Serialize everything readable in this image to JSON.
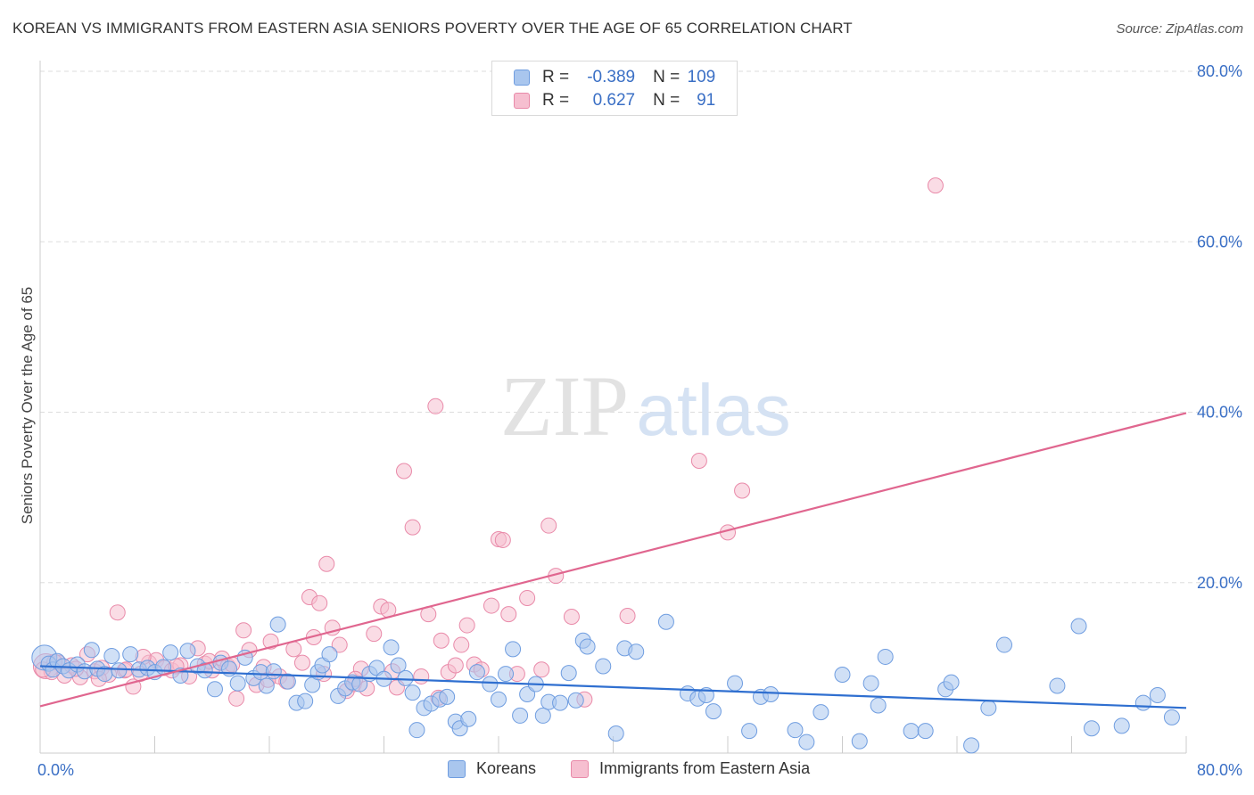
{
  "title": "KOREAN VS IMMIGRANTS FROM EASTERN ASIA SENIORS POVERTY OVER THE AGE OF 65 CORRELATION CHART",
  "source": "Source: ZipAtlas.com",
  "watermark": {
    "zip": "ZIP",
    "atlas": "atlas"
  },
  "colors": {
    "blue_fill": "#a9c6ee",
    "blue_stroke": "#6f9de0",
    "blue_line": "#2f6fd0",
    "pink_fill": "#f6bfd0",
    "pink_stroke": "#e98aa9",
    "pink_line": "#e0668f",
    "axis_label": "#3a6fc5",
    "grid": "#dddddd"
  },
  "legend_top": {
    "rows": [
      {
        "r_label": "R =",
        "r_value": "-0.389",
        "n_label": "N =",
        "n_value": "109"
      },
      {
        "r_label": "R =",
        "r_value": "0.627",
        "n_label": "N =",
        "n_value": "91"
      }
    ]
  },
  "legend_bottom": {
    "items": [
      "Koreans",
      "Immigrants from Eastern Asia"
    ]
  },
  "chart_data": {
    "type": "scatter",
    "title": "KOREAN VS IMMIGRANTS FROM EASTERN ASIA SENIORS POVERTY OVER THE AGE OF 65 CORRELATION CHART",
    "xlabel": "",
    "ylabel": "Seniors Poverty Over the Age of 65",
    "xlim": [
      0,
      80
    ],
    "ylim": [
      0,
      80
    ],
    "x_tick_labels": [
      "0.0%",
      "80.0%"
    ],
    "y_ticks": [
      20,
      40,
      60,
      80
    ],
    "y_tick_labels": [
      "20.0%",
      "40.0%",
      "60.0%",
      "80.0%"
    ],
    "grid": true,
    "legend_position": "top-center",
    "series": [
      {
        "name": "Koreans",
        "trend": {
          "x": [
            0,
            80
          ],
          "y": [
            10.2,
            5.3
          ]
        },
        "points": [
          [
            0.3,
            11.2
          ],
          [
            0.6,
            10.5
          ],
          [
            0.9,
            9.8
          ],
          [
            1.2,
            10.8
          ],
          [
            1.6,
            10.2
          ],
          [
            2.0,
            9.7
          ],
          [
            2.6,
            10.4
          ],
          [
            3.1,
            9.6
          ],
          [
            3.6,
            12.1
          ],
          [
            4.0,
            9.9
          ],
          [
            4.5,
            9.3
          ],
          [
            5.0,
            11.4
          ],
          [
            5.5,
            9.7
          ],
          [
            6.3,
            11.6
          ],
          [
            6.9,
            9.8
          ],
          [
            7.5,
            10.0
          ],
          [
            8.0,
            9.5
          ],
          [
            8.6,
            10.1
          ],
          [
            9.1,
            11.8
          ],
          [
            9.8,
            9.1
          ],
          [
            10.3,
            12.0
          ],
          [
            11.0,
            10.2
          ],
          [
            11.5,
            9.7
          ],
          [
            12.2,
            7.5
          ],
          [
            12.6,
            10.6
          ],
          [
            13.2,
            9.9
          ],
          [
            13.8,
            8.2
          ],
          [
            14.3,
            11.2
          ],
          [
            14.9,
            8.8
          ],
          [
            15.4,
            9.5
          ],
          [
            15.8,
            7.9
          ],
          [
            16.3,
            9.6
          ],
          [
            16.6,
            15.1
          ],
          [
            17.3,
            8.4
          ],
          [
            17.9,
            5.9
          ],
          [
            18.5,
            6.1
          ],
          [
            19.0,
            8.0
          ],
          [
            19.4,
            9.5
          ],
          [
            19.7,
            10.3
          ],
          [
            20.2,
            11.6
          ],
          [
            20.8,
            6.7
          ],
          [
            21.3,
            7.6
          ],
          [
            21.8,
            8.3
          ],
          [
            22.3,
            8.1
          ],
          [
            23.0,
            9.3
          ],
          [
            23.5,
            10.0
          ],
          [
            24.0,
            8.7
          ],
          [
            24.5,
            12.4
          ],
          [
            25.0,
            10.3
          ],
          [
            25.5,
            8.8
          ],
          [
            26.0,
            7.1
          ],
          [
            26.3,
            2.7
          ],
          [
            26.8,
            5.3
          ],
          [
            27.3,
            5.8
          ],
          [
            27.9,
            6.3
          ],
          [
            28.4,
            6.6
          ],
          [
            29.0,
            3.7
          ],
          [
            29.3,
            2.9
          ],
          [
            29.9,
            4.0
          ],
          [
            30.5,
            9.5
          ],
          [
            31.4,
            8.1
          ],
          [
            32.0,
            6.3
          ],
          [
            32.5,
            9.3
          ],
          [
            33.0,
            12.2
          ],
          [
            33.5,
            4.4
          ],
          [
            34.0,
            6.9
          ],
          [
            34.6,
            8.1
          ],
          [
            35.1,
            4.4
          ],
          [
            35.5,
            6.0
          ],
          [
            36.3,
            5.9
          ],
          [
            36.9,
            9.4
          ],
          [
            37.4,
            6.2
          ],
          [
            37.9,
            13.2
          ],
          [
            38.2,
            12.5
          ],
          [
            39.3,
            10.2
          ],
          [
            40.2,
            2.3
          ],
          [
            40.8,
            12.3
          ],
          [
            41.6,
            11.9
          ],
          [
            43.7,
            15.4
          ],
          [
            45.2,
            7.0
          ],
          [
            45.9,
            6.4
          ],
          [
            46.5,
            6.8
          ],
          [
            47.0,
            4.9
          ],
          [
            48.5,
            8.2
          ],
          [
            49.5,
            2.6
          ],
          [
            50.3,
            6.6
          ],
          [
            51.0,
            6.9
          ],
          [
            52.7,
            2.7
          ],
          [
            53.5,
            1.3
          ],
          [
            54.5,
            4.8
          ],
          [
            56.0,
            9.2
          ],
          [
            57.2,
            1.4
          ],
          [
            58.0,
            8.2
          ],
          [
            58.5,
            5.6
          ],
          [
            59.0,
            11.3
          ],
          [
            60.8,
            2.6
          ],
          [
            61.8,
            2.6
          ],
          [
            63.2,
            7.5
          ],
          [
            63.6,
            8.3
          ],
          [
            65.0,
            0.9
          ],
          [
            66.2,
            5.3
          ],
          [
            67.3,
            12.7
          ],
          [
            71.0,
            7.9
          ],
          [
            72.5,
            14.9
          ],
          [
            73.4,
            2.9
          ],
          [
            75.5,
            3.2
          ],
          [
            77.0,
            5.9
          ],
          [
            78.0,
            6.8
          ],
          [
            79.0,
            4.2
          ]
        ]
      },
      {
        "name": "Immigrants from Eastern Asia",
        "trend": {
          "x": [
            0,
            80
          ],
          "y": [
            5.5,
            39.9
          ]
        },
        "points": [
          [
            0.4,
            10.2
          ],
          [
            0.8,
            9.5
          ],
          [
            1.3,
            10.6
          ],
          [
            1.7,
            9.1
          ],
          [
            2.2,
            10.3
          ],
          [
            2.8,
            8.9
          ],
          [
            3.3,
            11.6
          ],
          [
            3.8,
            9.6
          ],
          [
            4.3,
            10.0
          ],
          [
            4.8,
            9.2
          ],
          [
            5.4,
            16.5
          ],
          [
            5.9,
            9.7
          ],
          [
            6.5,
            7.8
          ],
          [
            7.0,
            9.3
          ],
          [
            7.6,
            10.6
          ],
          [
            8.1,
            10.9
          ],
          [
            8.7,
            10.0
          ],
          [
            9.2,
            9.7
          ],
          [
            9.8,
            10.3
          ],
          [
            10.4,
            9.0
          ],
          [
            11.0,
            12.3
          ],
          [
            11.5,
            10.5
          ],
          [
            12.0,
            9.7
          ],
          [
            12.7,
            11.1
          ],
          [
            13.1,
            10.2
          ],
          [
            13.7,
            6.4
          ],
          [
            14.2,
            14.4
          ],
          [
            14.6,
            12.1
          ],
          [
            15.1,
            8.0
          ],
          [
            15.6,
            10.1
          ],
          [
            16.1,
            13.1
          ],
          [
            16.7,
            9.0
          ],
          [
            17.2,
            8.4
          ],
          [
            17.7,
            12.2
          ],
          [
            18.3,
            10.6
          ],
          [
            18.8,
            18.3
          ],
          [
            19.1,
            13.6
          ],
          [
            19.5,
            17.6
          ],
          [
            20.0,
            22.2
          ],
          [
            20.4,
            14.7
          ],
          [
            20.9,
            12.7
          ],
          [
            21.4,
            7.3
          ],
          [
            21.9,
            8.1
          ],
          [
            22.4,
            9.9
          ],
          [
            22.8,
            7.6
          ],
          [
            23.3,
            14.0
          ],
          [
            23.8,
            17.2
          ],
          [
            24.3,
            16.8
          ],
          [
            24.9,
            7.7
          ],
          [
            25.4,
            33.1
          ],
          [
            26.0,
            26.5
          ],
          [
            26.6,
            9.0
          ],
          [
            27.1,
            16.3
          ],
          [
            27.6,
            40.7
          ],
          [
            28.0,
            13.2
          ],
          [
            28.5,
            9.5
          ],
          [
            29.0,
            10.3
          ],
          [
            29.4,
            12.7
          ],
          [
            29.8,
            15.0
          ],
          [
            30.3,
            10.4
          ],
          [
            30.8,
            9.8
          ],
          [
            31.5,
            17.3
          ],
          [
            32.0,
            25.1
          ],
          [
            32.3,
            25.0
          ],
          [
            32.7,
            16.3
          ],
          [
            33.3,
            9.3
          ],
          [
            34.0,
            18.2
          ],
          [
            35.0,
            9.8
          ],
          [
            35.5,
            26.7
          ],
          [
            36.0,
            20.8
          ],
          [
            37.1,
            16.0
          ],
          [
            38.0,
            6.3
          ],
          [
            41.0,
            16.1
          ],
          [
            46.0,
            34.3
          ],
          [
            48.0,
            25.9
          ],
          [
            49.0,
            30.8
          ],
          [
            62.5,
            66.6
          ],
          [
            0.2,
            9.8
          ],
          [
            1.0,
            10.7
          ],
          [
            2.5,
            9.9
          ],
          [
            4.1,
            8.7
          ],
          [
            6.0,
            9.8
          ],
          [
            7.2,
            11.3
          ],
          [
            9.5,
            10.2
          ],
          [
            11.8,
            10.8
          ],
          [
            13.4,
            10.4
          ],
          [
            15.9,
            8.6
          ],
          [
            19.8,
            9.3
          ],
          [
            22.0,
            8.7
          ],
          [
            24.6,
            9.6
          ],
          [
            27.8,
            6.5
          ]
        ]
      }
    ]
  }
}
